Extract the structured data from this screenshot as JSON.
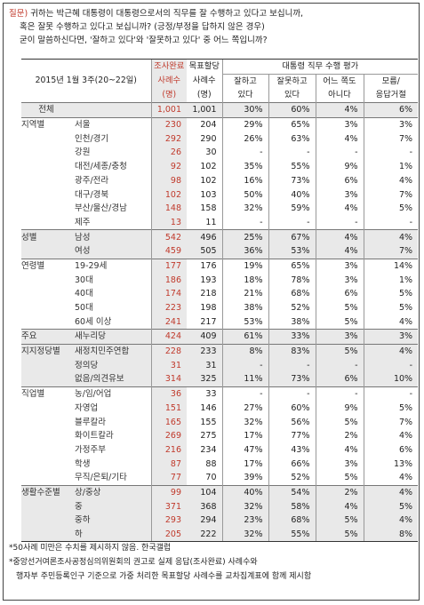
{
  "question": {
    "tag": "질문)",
    "line1": "귀하는 박근혜 대통령이 대통령으로서의 직무를 잘 수행하고 있다고 보십니까,",
    "line2": "혹은 잘못 수행하고 있다고 보십니까? (긍정/부정을 답하지 않은 경우)",
    "line3": "굳이 말씀하신다면, '잘하고 있다'와 '잘못하고 있다' 중 어느 쪽입니까?"
  },
  "header": {
    "period": "2015년 1월 3주(20~22일)",
    "col_complete_1": "조사완료",
    "col_complete_2": "사례수",
    "col_complete_3": "(명)",
    "col_target_1": "목표할당",
    "col_target_2": "사례수",
    "col_target_3": "(명)",
    "eval_title": "대통령 직무 수행 평가",
    "eval_good_1": "잘하고",
    "eval_good_2": "있다",
    "eval_bad_1": "잘못하고",
    "eval_bad_2": "있다",
    "eval_neither_1": "어느 쪽도",
    "eval_neither_2": "아니다",
    "eval_dk_1": "모름/",
    "eval_dk_2": "응답거절"
  },
  "rows": [
    {
      "group": "전체",
      "sub": "",
      "a": "1,001",
      "b": "1,001",
      "good": "30%",
      "bad": "60%",
      "neither": "4%",
      "dk": "6%"
    },
    {
      "group": "지역별",
      "sub": "서울",
      "a": "230",
      "b": "204",
      "good": "29%",
      "bad": "65%",
      "neither": "3%",
      "dk": "3%"
    },
    {
      "group": "",
      "sub": "인천/경기",
      "a": "292",
      "b": "290",
      "good": "26%",
      "bad": "63%",
      "neither": "4%",
      "dk": "7%"
    },
    {
      "group": "",
      "sub": "강원",
      "a": "26",
      "b": "30",
      "good": "-",
      "bad": "-",
      "neither": "-",
      "dk": "-"
    },
    {
      "group": "",
      "sub": "대전/세종/충청",
      "a": "92",
      "b": "102",
      "good": "35%",
      "bad": "55%",
      "neither": "9%",
      "dk": "1%"
    },
    {
      "group": "",
      "sub": "광주/전라",
      "a": "98",
      "b": "102",
      "good": "16%",
      "bad": "73%",
      "neither": "6%",
      "dk": "4%"
    },
    {
      "group": "",
      "sub": "대구/경북",
      "a": "102",
      "b": "103",
      "good": "50%",
      "bad": "40%",
      "neither": "3%",
      "dk": "7%"
    },
    {
      "group": "",
      "sub": "부산/울산/경남",
      "a": "148",
      "b": "158",
      "good": "32%",
      "bad": "59%",
      "neither": "4%",
      "dk": "5%"
    },
    {
      "group": "",
      "sub": "제주",
      "a": "13",
      "b": "11",
      "good": "-",
      "bad": "-",
      "neither": "-",
      "dk": "-"
    },
    {
      "group": "성별",
      "sub": "남성",
      "a": "542",
      "b": "496",
      "good": "25%",
      "bad": "67%",
      "neither": "4%",
      "dk": "4%"
    },
    {
      "group": "",
      "sub": "여성",
      "a": "459",
      "b": "505",
      "good": "36%",
      "bad": "53%",
      "neither": "4%",
      "dk": "7%"
    },
    {
      "group": "연령별",
      "sub": "19-29세",
      "a": "177",
      "b": "176",
      "good": "19%",
      "bad": "65%",
      "neither": "3%",
      "dk": "14%"
    },
    {
      "group": "",
      "sub": "30대",
      "a": "186",
      "b": "193",
      "good": "18%",
      "bad": "78%",
      "neither": "3%",
      "dk": "1%"
    },
    {
      "group": "",
      "sub": "40대",
      "a": "174",
      "b": "218",
      "good": "21%",
      "bad": "68%",
      "neither": "6%",
      "dk": "5%"
    },
    {
      "group": "",
      "sub": "50대",
      "a": "223",
      "b": "198",
      "good": "38%",
      "bad": "52%",
      "neither": "5%",
      "dk": "5%"
    },
    {
      "group": "",
      "sub": "60세 이상",
      "a": "241",
      "b": "217",
      "good": "53%",
      "bad": "38%",
      "neither": "5%",
      "dk": "4%"
    },
    {
      "group": "주요",
      "sub": "새누리당",
      "a": "424",
      "b": "409",
      "good": "61%",
      "bad": "33%",
      "neither": "3%",
      "dk": "3%"
    },
    {
      "group": "지지정당별",
      "sub": "새정치민주연합",
      "a": "228",
      "b": "233",
      "good": "8%",
      "bad": "83%",
      "neither": "5%",
      "dk": "4%"
    },
    {
      "group": "",
      "sub": "정의당",
      "a": "31",
      "b": "31",
      "good": "-",
      "bad": "-",
      "neither": "-",
      "dk": "-"
    },
    {
      "group": "",
      "sub": "없음/의견유보",
      "a": "314",
      "b": "325",
      "good": "11%",
      "bad": "73%",
      "neither": "6%",
      "dk": "10%"
    },
    {
      "group": "직업별",
      "sub": "농/임/어업",
      "a": "36",
      "b": "33",
      "good": "-",
      "bad": "-",
      "neither": "-",
      "dk": "-"
    },
    {
      "group": "",
      "sub": "자영업",
      "a": "151",
      "b": "146",
      "good": "27%",
      "bad": "60%",
      "neither": "9%",
      "dk": "5%"
    },
    {
      "group": "",
      "sub": "블루칼라",
      "a": "165",
      "b": "155",
      "good": "32%",
      "bad": "56%",
      "neither": "5%",
      "dk": "7%"
    },
    {
      "group": "",
      "sub": "화이트칼라",
      "a": "269",
      "b": "275",
      "good": "17%",
      "bad": "77%",
      "neither": "2%",
      "dk": "4%"
    },
    {
      "group": "",
      "sub": "가정주부",
      "a": "216",
      "b": "234",
      "good": "47%",
      "bad": "43%",
      "neither": "4%",
      "dk": "6%"
    },
    {
      "group": "",
      "sub": "학생",
      "a": "87",
      "b": "88",
      "good": "17%",
      "bad": "66%",
      "neither": "3%",
      "dk": "13%"
    },
    {
      "group": "",
      "sub": "무직/은퇴/기타",
      "a": "77",
      "b": "70",
      "good": "39%",
      "bad": "52%",
      "neither": "5%",
      "dk": "4%"
    },
    {
      "group": "생활수준별",
      "sub": "상/중상",
      "a": "99",
      "b": "104",
      "good": "40%",
      "bad": "54%",
      "neither": "2%",
      "dk": "4%"
    },
    {
      "group": "",
      "sub": "중",
      "a": "371",
      "b": "368",
      "good": "32%",
      "bad": "58%",
      "neither": "4%",
      "dk": "5%"
    },
    {
      "group": "",
      "sub": "중하",
      "a": "293",
      "b": "294",
      "good": "23%",
      "bad": "68%",
      "neither": "5%",
      "dk": "4%"
    },
    {
      "group": "",
      "sub": "하",
      "a": "205",
      "b": "222",
      "good": "32%",
      "bad": "55%",
      "neither": "5%",
      "dk": "8%"
    }
  ],
  "footnotes": {
    "line1": "*50사례 미만은 수치를 제시하지 않음. 한국갤럽",
    "line2": "*중앙선거여론조사공정심의위원회의 권고로 실제 응답(조사완료) 사례수와",
    "line3": "행자부 주민등록인구 기준으로 가중 처리한 목표할당 사례수를 교차집계표에 함께 제시함"
  },
  "colors": {
    "accent": "#c0392b",
    "shade": "#e9e9e9"
  }
}
